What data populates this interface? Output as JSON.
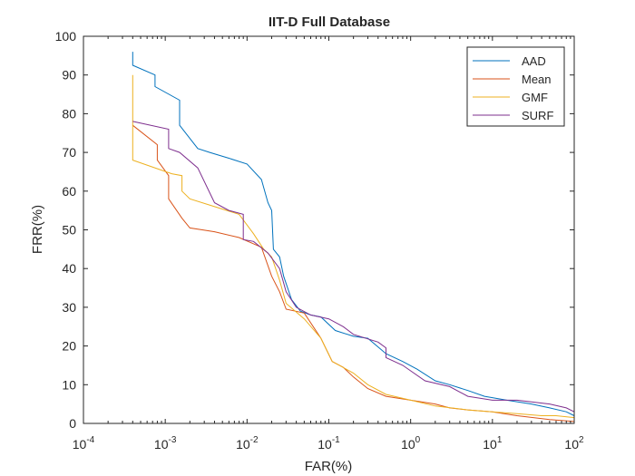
{
  "chart_data": {
    "type": "line",
    "title": "IIT-D Full Database",
    "xlabel": "FAR(%)",
    "ylabel": "FRR(%)",
    "x_scale": "log",
    "xlim": [
      0.0001,
      100
    ],
    "ylim": [
      0,
      100
    ],
    "x_ticks": [
      {
        "base": "10",
        "exp": "-4"
      },
      {
        "base": "10",
        "exp": "-3"
      },
      {
        "base": "10",
        "exp": "-2"
      },
      {
        "base": "10",
        "exp": "-1"
      },
      {
        "base": "10",
        "exp": "0"
      },
      {
        "base": "10",
        "exp": "1"
      },
      {
        "base": "10",
        "exp": "2"
      }
    ],
    "y_ticks": [
      "0",
      "10",
      "20",
      "30",
      "40",
      "50",
      "60",
      "70",
      "80",
      "90",
      "100"
    ],
    "grid": false,
    "legend_position": "top-right",
    "series": [
      {
        "name": "AAD",
        "color": "#0072BD",
        "points": [
          [
            0.0004,
            96
          ],
          [
            0.0004,
            92.5
          ],
          [
            0.00075,
            90
          ],
          [
            0.00075,
            87
          ],
          [
            0.0015,
            83.5
          ],
          [
            0.0015,
            77
          ],
          [
            0.0025,
            71
          ],
          [
            0.0035,
            70
          ],
          [
            0.006,
            68.5
          ],
          [
            0.01,
            67
          ],
          [
            0.015,
            63
          ],
          [
            0.018,
            57
          ],
          [
            0.02,
            55
          ],
          [
            0.021,
            45
          ],
          [
            0.025,
            43
          ],
          [
            0.028,
            38
          ],
          [
            0.035,
            32
          ],
          [
            0.045,
            29
          ],
          [
            0.06,
            28
          ],
          [
            0.08,
            27.5
          ],
          [
            0.12,
            24
          ],
          [
            0.2,
            22.5
          ],
          [
            0.3,
            22
          ],
          [
            0.5,
            18
          ],
          [
            0.8,
            16
          ],
          [
            1.2,
            14
          ],
          [
            2,
            11
          ],
          [
            3,
            10
          ],
          [
            5,
            8.5
          ],
          [
            8,
            7
          ],
          [
            15,
            6
          ],
          [
            30,
            5
          ],
          [
            50,
            4
          ],
          [
            80,
            3
          ],
          [
            100,
            2
          ]
        ]
      },
      {
        "name": "Mean",
        "color": "#D95319",
        "points": [
          [
            0.0004,
            77
          ],
          [
            0.0008,
            72
          ],
          [
            0.0008,
            68
          ],
          [
            0.0011,
            64
          ],
          [
            0.0011,
            58
          ],
          [
            0.0016,
            53
          ],
          [
            0.002,
            50.5
          ],
          [
            0.004,
            49.5
          ],
          [
            0.008,
            48
          ],
          [
            0.015,
            45.5
          ],
          [
            0.02,
            38
          ],
          [
            0.025,
            34
          ],
          [
            0.03,
            29.5
          ],
          [
            0.05,
            28.5
          ],
          [
            0.08,
            22
          ],
          [
            0.11,
            16
          ],
          [
            0.15,
            14.5
          ],
          [
            0.2,
            12
          ],
          [
            0.3,
            9
          ],
          [
            0.5,
            7
          ],
          [
            1,
            6
          ],
          [
            2,
            5
          ],
          [
            3,
            4
          ],
          [
            5,
            3.5
          ],
          [
            10,
            3
          ],
          [
            20,
            2
          ],
          [
            50,
            1
          ],
          [
            100,
            0.5
          ]
        ]
      },
      {
        "name": "GMF",
        "color": "#EDB120",
        "points": [
          [
            0.0004,
            90
          ],
          [
            0.0004,
            68
          ],
          [
            0.0012,
            64.5
          ],
          [
            0.0016,
            64
          ],
          [
            0.0016,
            60
          ],
          [
            0.002,
            58
          ],
          [
            0.004,
            56
          ],
          [
            0.008,
            54
          ],
          [
            0.012,
            49
          ],
          [
            0.016,
            45
          ],
          [
            0.02,
            43
          ],
          [
            0.025,
            37
          ],
          [
            0.03,
            31
          ],
          [
            0.05,
            27
          ],
          [
            0.08,
            22
          ],
          [
            0.11,
            16
          ],
          [
            0.2,
            13
          ],
          [
            0.3,
            10
          ],
          [
            0.5,
            7.5
          ],
          [
            1,
            6
          ],
          [
            2,
            4.5
          ],
          [
            5,
            3.5
          ],
          [
            10,
            3
          ],
          [
            20,
            2.5
          ],
          [
            40,
            2
          ],
          [
            60,
            2
          ],
          [
            100,
            1.5
          ]
        ]
      },
      {
        "name": "SURF",
        "color": "#7E2F8E",
        "points": [
          [
            0.0004,
            78
          ],
          [
            0.0011,
            76
          ],
          [
            0.0011,
            71
          ],
          [
            0.0015,
            70
          ],
          [
            0.0025,
            66
          ],
          [
            0.004,
            57
          ],
          [
            0.006,
            55
          ],
          [
            0.009,
            54
          ],
          [
            0.009,
            47.5
          ],
          [
            0.012,
            47
          ],
          [
            0.018,
            44
          ],
          [
            0.025,
            40
          ],
          [
            0.03,
            34
          ],
          [
            0.04,
            30
          ],
          [
            0.06,
            28
          ],
          [
            0.1,
            27
          ],
          [
            0.15,
            25
          ],
          [
            0.2,
            23
          ],
          [
            0.4,
            21
          ],
          [
            0.5,
            19.5
          ],
          [
            0.5,
            17
          ],
          [
            0.8,
            15
          ],
          [
            1.5,
            11
          ],
          [
            3,
            9.5
          ],
          [
            5,
            7
          ],
          [
            10,
            6
          ],
          [
            20,
            6
          ],
          [
            50,
            5
          ],
          [
            80,
            4
          ],
          [
            100,
            3
          ]
        ]
      }
    ]
  }
}
